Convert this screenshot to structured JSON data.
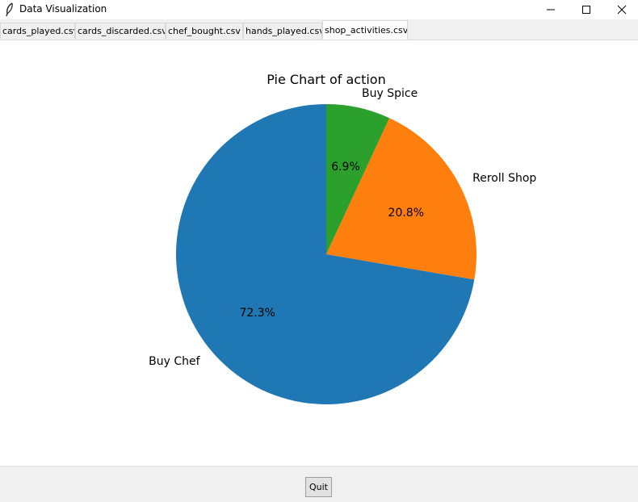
{
  "window": {
    "title": "Data Visualization",
    "icon": "feather-icon"
  },
  "tabs": [
    {
      "label": "cards_played.csv",
      "selected": false
    },
    {
      "label": "cards_discarded.csv",
      "selected": false
    },
    {
      "label": "chef_bought.csv",
      "selected": false
    },
    {
      "label": "hands_played.csv",
      "selected": false
    },
    {
      "label": "shop_activities.csv",
      "selected": true
    }
  ],
  "footer": {
    "quit_label": "Quit"
  },
  "colors": {
    "blue": "#1f77b4",
    "orange": "#ff7f0e",
    "green": "#2ca02c"
  },
  "chart_data": {
    "type": "pie",
    "title": "Pie Chart of action",
    "labels": [
      "Buy Chef",
      "Reroll Shop",
      "Buy Spice"
    ],
    "values": [
      72.3,
      20.8,
      6.9
    ],
    "pct_labels": [
      "72.3%",
      "20.8%",
      "6.9%"
    ],
    "colors": [
      "#1f77b4",
      "#ff7f0e",
      "#2ca02c"
    ],
    "start_angle_deg": 90,
    "direction": "counterclockwise"
  }
}
